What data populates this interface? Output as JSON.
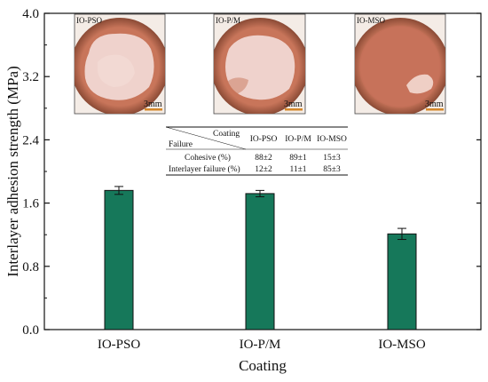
{
  "chart_data": {
    "type": "bar",
    "categories": [
      "IO-PSO",
      "IO-P/M",
      "IO-MSO"
    ],
    "values": [
      1.76,
      1.72,
      1.21
    ],
    "errors": [
      0.05,
      0.04,
      0.07
    ],
    "xlabel": "Coating",
    "ylabel": "Interlayer adhesion strength (MPa)",
    "ylim": [
      0.0,
      4.0
    ],
    "yticks": [
      "0.0",
      "0.8",
      "1.6",
      "2.4",
      "3.2",
      "4.0"
    ],
    "bar_color": "#16785a",
    "grid": false
  },
  "insets": [
    {
      "label": "IO-PSO",
      "scale": "3mm"
    },
    {
      "label": "IO-P/M",
      "scale": "3mm"
    },
    {
      "label": "IO-MSO",
      "scale": "3mm"
    }
  ],
  "table": {
    "corner_top": "Coating",
    "corner_bottom": "Failure",
    "columns": [
      "IO-PSO",
      "IO-P/M",
      "IO-MSO"
    ],
    "rows": [
      {
        "label": "Cohesive (%)",
        "values": [
          "88±2",
          "89±1",
          "15±3"
        ]
      },
      {
        "label": "Interlayer failure (%)",
        "values": [
          "12±2",
          "11±1",
          "85±3"
        ]
      }
    ]
  }
}
